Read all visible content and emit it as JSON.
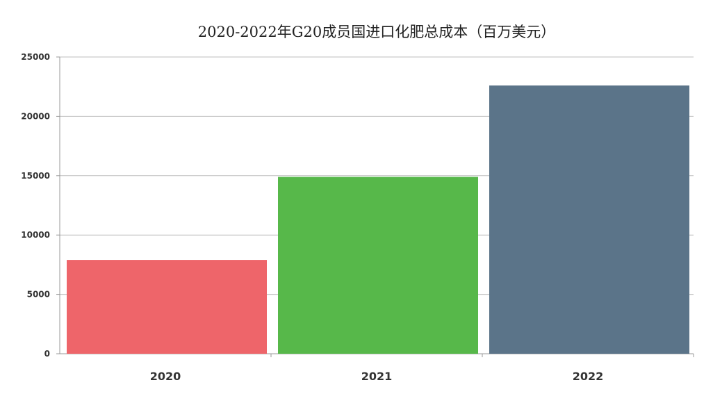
{
  "chart_data": {
    "type": "bar",
    "title": "2020-2022年G20成员国进口化肥总成本（百万美元）",
    "categories": [
      "2020",
      "2021",
      "2022"
    ],
    "values": [
      7900,
      14900,
      22600
    ],
    "colors": [
      "#ee656a",
      "#57b84a",
      "#5b7489"
    ],
    "ylim": [
      0,
      25000
    ],
    "yticks": [
      0,
      5000,
      10000,
      15000,
      20000,
      25000
    ],
    "grid": true,
    "legend": "none"
  }
}
